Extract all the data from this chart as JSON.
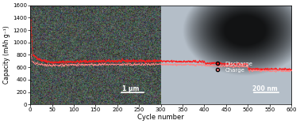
{
  "title": "",
  "xlabel": "Cycle number",
  "ylabel": "Capacity (mAh g⁻¹)",
  "xlim": [
    0,
    600
  ],
  "ylim": [
    0,
    1600
  ],
  "xticks": [
    0,
    50,
    100,
    150,
    200,
    250,
    300,
    350,
    400,
    450,
    500,
    550,
    600
  ],
  "yticks": [
    0,
    200,
    400,
    600,
    800,
    1000,
    1200,
    1400,
    1600
  ],
  "discharge_color": "#FF1A1A",
  "charge_color": "#FF8888",
  "line_color": "#FF2222",
  "bg_left_color": "#7A8A85",
  "bg_right_color": "#A0B0B8",
  "scalebar1_text": "1 μm",
  "scalebar2_text": "200 nm",
  "legend_discharge": "Discharge",
  "legend_charge": "Charge",
  "figsize": [
    3.78,
    1.57
  ],
  "dpi": 100
}
